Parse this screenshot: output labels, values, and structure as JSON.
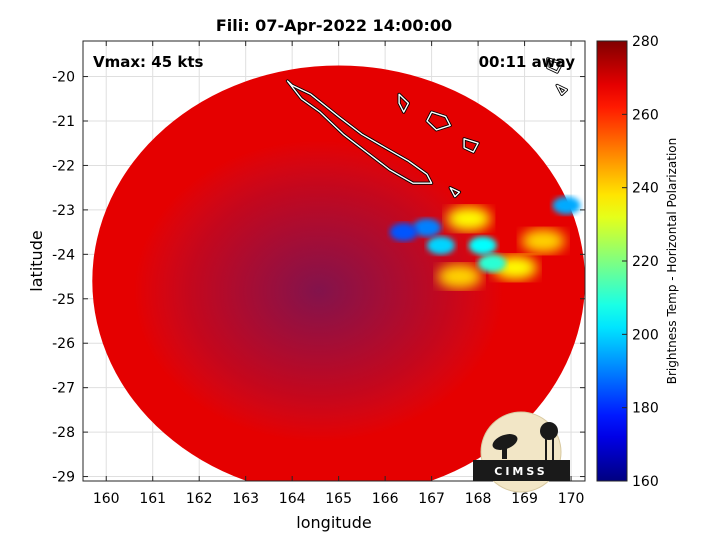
{
  "chart_data": {
    "type": "heatmap",
    "title": "Fili: 07-Apr-2022 14:00:00",
    "xlabel": "longitude",
    "ylabel": "latitude",
    "xlim": [
      159.5,
      170.3
    ],
    "ylim": [
      -29.1,
      -19.2
    ],
    "x_ticks": [
      "160",
      "161",
      "162",
      "163",
      "164",
      "165",
      "166",
      "167",
      "168",
      "169",
      "170"
    ],
    "x_tick_values": [
      160,
      161,
      162,
      163,
      164,
      165,
      166,
      167,
      168,
      169,
      170
    ],
    "y_ticks": [
      "-20",
      "-21",
      "-22",
      "-23",
      "-24",
      "-25",
      "-26",
      "-27",
      "-28",
      "-29"
    ],
    "y_tick_values": [
      -20,
      -21,
      -22,
      -23,
      -24,
      -25,
      -26,
      -27,
      -28,
      -29
    ],
    "grid": true,
    "annotations": {
      "vmax": "Vmax: 45 kts",
      "time_away": "00:11 away"
    },
    "colorbar": {
      "label": "Brightness Temp - Horizontal Polarization",
      "min": 160,
      "max": 280,
      "ticks": [
        "280",
        "260",
        "240",
        "220",
        "200",
        "180",
        "160"
      ],
      "tick_values": [
        280,
        260,
        240,
        220,
        200,
        180,
        160
      ],
      "colormap": "jet"
    },
    "swath": {
      "center": [
        165.0,
        -24.6
      ],
      "radius_deg_lat": 4.85,
      "radius_deg_lon": 5.3,
      "background_temp": 268
    },
    "warm_features": [
      {
        "lon": 166.4,
        "lat": -23.5,
        "temp": 185
      },
      {
        "lon": 166.9,
        "lat": -23.4,
        "temp": 190
      },
      {
        "lon": 167.2,
        "lat": -23.8,
        "temp": 200
      },
      {
        "lon": 168.1,
        "lat": -23.8,
        "temp": 205
      },
      {
        "lon": 168.3,
        "lat": -24.2,
        "temp": 210
      },
      {
        "lon": 169.9,
        "lat": -22.9,
        "temp": 195
      },
      {
        "lon": 167.8,
        "lat": -23.2,
        "temp": 235
      },
      {
        "lon": 168.8,
        "lat": -24.3,
        "temp": 235
      },
      {
        "lon": 167.6,
        "lat": -24.5,
        "temp": 240
      },
      {
        "lon": 169.4,
        "lat": -23.7,
        "temp": 240
      }
    ],
    "coastlines": [
      {
        "name": "New Caledonia",
        "points": [
          [
            164.0,
            -20.2
          ],
          [
            164.4,
            -20.4
          ],
          [
            165.0,
            -20.9
          ],
          [
            165.5,
            -21.3
          ],
          [
            166.0,
            -21.6
          ],
          [
            166.5,
            -21.9
          ],
          [
            166.9,
            -22.2
          ],
          [
            167.0,
            -22.4
          ],
          [
            166.6,
            -22.4
          ],
          [
            166.1,
            -22.1
          ],
          [
            165.6,
            -21.7
          ],
          [
            165.1,
            -21.3
          ],
          [
            164.6,
            -20.8
          ],
          [
            164.2,
            -20.5
          ],
          [
            163.9,
            -20.1
          ]
        ]
      },
      {
        "name": "Ouvea",
        "points": [
          [
            166.3,
            -20.4
          ],
          [
            166.5,
            -20.6
          ],
          [
            166.4,
            -20.8
          ],
          [
            166.3,
            -20.6
          ]
        ]
      },
      {
        "name": "Lifou",
        "points": [
          [
            167.0,
            -20.8
          ],
          [
            167.3,
            -20.9
          ],
          [
            167.4,
            -21.1
          ],
          [
            167.1,
            -21.2
          ],
          [
            166.9,
            -21.0
          ]
        ]
      },
      {
        "name": "Mare",
        "points": [
          [
            167.7,
            -21.4
          ],
          [
            168.0,
            -21.5
          ],
          [
            167.9,
            -21.7
          ],
          [
            167.7,
            -21.6
          ]
        ]
      },
      {
        "name": "Isle of Pines",
        "points": [
          [
            167.4,
            -22.5
          ],
          [
            167.6,
            -22.6
          ],
          [
            167.5,
            -22.7
          ]
        ]
      },
      {
        "name": "Vanuatu",
        "points": [
          [
            169.5,
            -19.6
          ],
          [
            169.8,
            -19.7
          ],
          [
            169.7,
            -19.9
          ],
          [
            169.5,
            -19.8
          ]
        ]
      },
      {
        "name": "Vanuatu S",
        "points": [
          [
            169.7,
            -20.2
          ],
          [
            169.9,
            -20.3
          ],
          [
            169.8,
            -20.4
          ]
        ]
      }
    ]
  },
  "logo": {
    "text": "CIMSS"
  }
}
